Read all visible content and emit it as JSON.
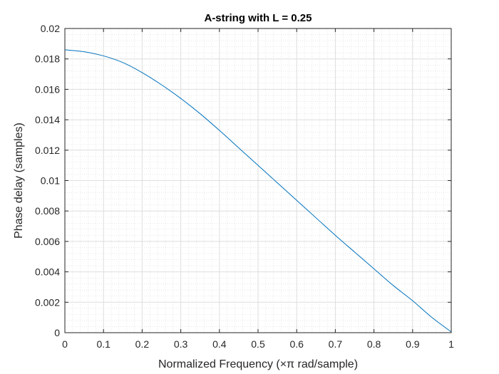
{
  "chart_data": {
    "type": "line",
    "title": "A-string with L = 0.25",
    "xlabel": "Normalized Frequency  (×π rad/sample)",
    "ylabel": "Phase delay (samples)",
    "xlim": [
      0,
      1
    ],
    "ylim": [
      0,
      0.02
    ],
    "x_ticks": [
      0,
      0.1,
      0.2,
      0.3,
      0.4,
      0.5,
      0.6,
      0.7,
      0.8,
      0.9,
      1
    ],
    "x_tick_labels": [
      "0",
      "0.1",
      "0.2",
      "0.3",
      "0.4",
      "0.5",
      "0.6",
      "0.7",
      "0.8",
      "0.9",
      "1"
    ],
    "y_ticks": [
      0,
      0.002,
      0.004,
      0.006,
      0.008,
      0.01,
      0.012,
      0.014,
      0.016,
      0.018,
      0.02
    ],
    "y_tick_labels": [
      "0",
      "0.002",
      "0.004",
      "0.006",
      "0.008",
      "0.01",
      "0.012",
      "0.014",
      "0.016",
      "0.018",
      "0.02"
    ],
    "grid": true,
    "minor_grid": true,
    "line_color": "#0072BD",
    "series": [
      {
        "x": [
          0,
          0.05,
          0.1,
          0.15,
          0.2,
          0.25,
          0.3,
          0.35,
          0.4,
          0.45,
          0.5,
          0.55,
          0.6,
          0.65,
          0.7,
          0.75,
          0.8,
          0.85,
          0.9,
          0.95,
          1.0
        ],
        "values": [
          0.0186,
          0.01847,
          0.0182,
          0.01776,
          0.0171,
          0.0163,
          0.0154,
          0.0144,
          0.0133,
          0.01215,
          0.011,
          0.00985,
          0.0087,
          0.00755,
          0.0064,
          0.0053,
          0.0042,
          0.0031,
          0.0021,
          0.001,
          5e-05
        ]
      }
    ]
  }
}
